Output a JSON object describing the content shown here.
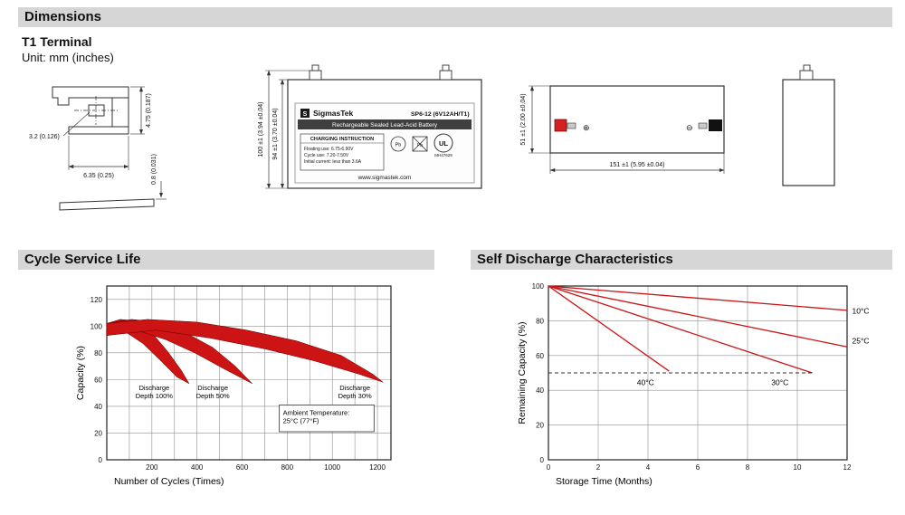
{
  "header": {
    "dimensions_title": "Dimensions",
    "terminal_type": "T1 Terminal",
    "unit_note": "Unit: mm (inches)"
  },
  "drawing": {
    "terminal_detail": {
      "dim_height": "4.75 (0.187)",
      "dim_slot": "3.2 (0.126)",
      "dim_width": "6.35 (0.25)",
      "dim_thickness": "0.8 (0.031)"
    },
    "front_view": {
      "dim_overall_height": "100 ±1 (3.94 ±0.04)",
      "dim_case_height": "94 ±1 (3.70 ±0.04)",
      "brand_mark": "S",
      "brand": "SigmasTek",
      "model": "SP6-12 (6V12AH/T1)",
      "type_line": "Rechargeable Sealed Lead-Acid Battery",
      "charging_title": "CHARGING INSTRUCTION",
      "charging_line1": "Floating use: 6.75-6.90V",
      "charging_line2": "Cycle use: 7.20-7.50V",
      "charging_line3": "Initial current: less than 3.6A",
      "pb": "Pb",
      "ul_mark": "UL",
      "ul_code": "MH47629",
      "website": "www.sigmastek.com"
    },
    "side_view": {
      "dim_height": "51 ±1 (2.00 ±0.04)",
      "dim_length": "151 ±1 (5.95 ±0.04)",
      "positive_symbol": "⊕",
      "negative_symbol": "⊖"
    }
  },
  "chart_data": [
    {
      "type": "area",
      "title": "Cycle Service Life",
      "xlabel": "Number of Cycles (Times)",
      "ylabel": "Capacity (%)",
      "xlim": [
        0,
        1260
      ],
      "ylim": [
        0,
        130
      ],
      "xticks": [
        200,
        400,
        600,
        800,
        1000,
        1200
      ],
      "yticks": [
        0,
        20,
        40,
        60,
        80,
        100,
        120
      ],
      "xgrid": 100,
      "ygrid": 20,
      "grid": true,
      "legend": "none",
      "band_color": "#cc1414",
      "bands": [
        {
          "name": "Discharge Depth 100%",
          "label_lines": [
            "Discharge",
            "Depth 100%"
          ],
          "label_x": 210,
          "label_y": 52,
          "upper": [
            [
              0,
              102
            ],
            [
              60,
              105
            ],
            [
              130,
              104
            ],
            [
              200,
              95
            ],
            [
              270,
              81
            ],
            [
              330,
              67
            ],
            [
              365,
              57
            ]
          ],
          "lower": [
            [
              0,
              93
            ],
            [
              80,
              96
            ],
            [
              160,
              87
            ],
            [
              240,
              74
            ],
            [
              310,
              62
            ],
            [
              365,
              57
            ]
          ]
        },
        {
          "name": "Discharge Depth 50%",
          "label_lines": [
            "Discharge",
            "Depth 50%"
          ],
          "label_x": 470,
          "label_y": 52,
          "upper": [
            [
              0,
              102
            ],
            [
              110,
              105
            ],
            [
              230,
              103
            ],
            [
              350,
              95
            ],
            [
              470,
              84
            ],
            [
              570,
              70
            ],
            [
              645,
              57
            ]
          ],
          "lower": [
            [
              0,
              93
            ],
            [
              130,
              97
            ],
            [
              260,
              90
            ],
            [
              390,
              80
            ],
            [
              520,
              68
            ],
            [
              645,
              57
            ]
          ]
        },
        {
          "name": "Discharge Depth 30%",
          "label_lines": [
            "Discharge",
            "Depth 30%"
          ],
          "label_x": 1100,
          "label_y": 52,
          "upper": [
            [
              0,
              102
            ],
            [
              180,
              105
            ],
            [
              400,
              103
            ],
            [
              620,
              97
            ],
            [
              840,
              89
            ],
            [
              1040,
              78
            ],
            [
              1180,
              64
            ],
            [
              1225,
              58
            ]
          ],
          "lower": [
            [
              0,
              93
            ],
            [
              220,
              97
            ],
            [
              460,
              91
            ],
            [
              700,
              83
            ],
            [
              920,
              74
            ],
            [
              1120,
              64
            ],
            [
              1225,
              58
            ]
          ]
        }
      ],
      "annotation_box": {
        "lines": [
          "Ambient Temperature:",
          "25°C (77°F)"
        ],
        "x0": 765,
        "x1": 1185,
        "y0": 21,
        "y1": 41
      }
    },
    {
      "type": "line",
      "title": "Self Discharge Characteristics",
      "xlabel": "Storage Time (Months)",
      "ylabel": "Remaining Capacity (%)",
      "xlim": [
        0,
        12
      ],
      "ylim": [
        0,
        100
      ],
      "xticks": [
        0,
        2,
        4,
        6,
        8,
        10,
        12
      ],
      "yticks": [
        0,
        20,
        40,
        60,
        80,
        100
      ],
      "xgrid": 2,
      "ygrid": 20,
      "grid": true,
      "legend": "inline-labels",
      "line_color": "#cc1414",
      "series": [
        {
          "name": "10°C",
          "points": [
            [
              0,
              100
            ],
            [
              12,
              86
            ]
          ],
          "label": "10°C",
          "label_x": 12.2,
          "label_y": 84,
          "anchor": "start"
        },
        {
          "name": "25°C",
          "points": [
            [
              0,
              100
            ],
            [
              12,
              65
            ]
          ],
          "label": "25°C",
          "label_x": 12.2,
          "label_y": 67,
          "anchor": "start"
        },
        {
          "name": "30°C",
          "points": [
            [
              0,
              100
            ],
            [
              10.6,
              50
            ]
          ],
          "label": "30°C",
          "label_x": 9.3,
          "label_y": 43,
          "anchor": "middle"
        },
        {
          "name": "40°C",
          "points": [
            [
              0,
              100
            ],
            [
              4.85,
              51
            ]
          ],
          "label": "40°C",
          "label_x": 3.9,
          "label_y": 43,
          "anchor": "middle"
        }
      ],
      "dashed_line": {
        "y": 50,
        "x0": 0,
        "x1": 10.6
      }
    }
  ]
}
